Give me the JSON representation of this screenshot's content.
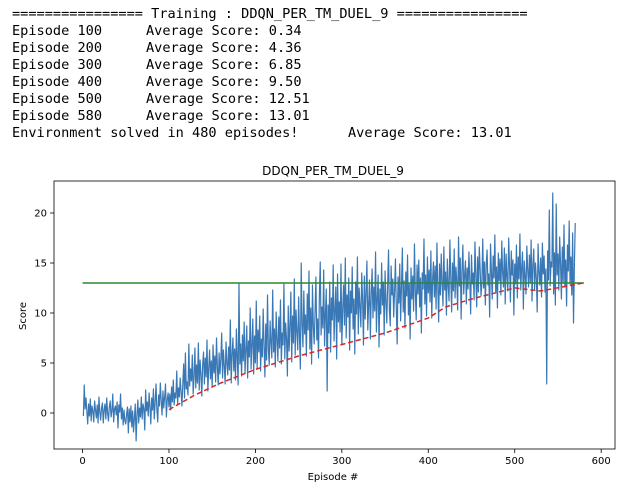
{
  "console": {
    "header": "================ Training : DDQN_PER_TM_DUEL_9 ================",
    "episodes": [
      {
        "episode": "Episode 100",
        "score": "Average Score: 0.34"
      },
      {
        "episode": "Episode 200",
        "score": "Average Score: 4.36"
      },
      {
        "episode": "Episode 300",
        "score": "Average Score: 6.85"
      },
      {
        "episode": "Episode 400",
        "score": "Average Score: 9.50"
      },
      {
        "episode": "Episode 500",
        "score": "Average Score: 12.51"
      },
      {
        "episode": "Episode 580",
        "score": "Average Score: 13.01"
      }
    ],
    "solved": "Environment solved in 480 episodes!",
    "solved_score": "Average Score: 13.01"
  },
  "chart_data": {
    "type": "line",
    "title": "DDQN_PER_TM_DUEL_9",
    "xlabel": "Episode #",
    "ylabel": "Score",
    "xlim": [
      -33,
      616
    ],
    "ylim": [
      -3.6,
      23.2
    ],
    "xticks": [
      0,
      100,
      200,
      300,
      400,
      500,
      600
    ],
    "yticks": [
      0,
      5,
      10,
      15,
      20
    ],
    "grid": false,
    "colors": {
      "score": "#3a78b5",
      "average": "#d62728",
      "target": "#2a8a2a"
    },
    "target": {
      "value": 13,
      "x": [
        0,
        580
      ]
    },
    "series": [
      {
        "name": "",
        "style": "solid",
        "x_start": 1,
        "values": [
          -0.3,
          2.8,
          0.4,
          1.5,
          0.2,
          -1.1,
          0.9,
          -0.3,
          1.4,
          -0.8,
          0.7,
          0.2,
          -0.9,
          1.2,
          0.3,
          -0.5,
          0.8,
          -1.0,
          1.6,
          0.1,
          -0.7,
          0.5,
          1.0,
          -1.0,
          0.3,
          0.9,
          -0.6,
          1.5,
          0.0,
          -0.8,
          0.6,
          1.2,
          -0.4,
          0.2,
          1.9,
          -0.9,
          0.4,
          0.7,
          -0.2,
          1.1,
          -1.5,
          0.8,
          0.1,
          1.9,
          -0.6,
          0.5,
          -1.2,
          0.3,
          -0.8,
          -1.1,
          -0.1,
          0.6,
          -2.0,
          0.4,
          -0.9,
          0.7,
          -1.4,
          0.2,
          -1.9,
          -0.5,
          0.9,
          -2.8,
          -0.2,
          1.3,
          -1.0,
          0.5,
          -0.4,
          1.6,
          -0.6,
          0.9,
          0.4,
          -1.7,
          2.3,
          0.2,
          1.1,
          -0.3,
          2.0,
          0.6,
          -1.1,
          1.5,
          0.3,
          2.4,
          -0.6,
          1.0,
          2.9,
          0.4,
          -0.9,
          1.8,
          0.7,
          3.0,
          1.2,
          -0.2,
          2.2,
          0.5,
          1.6,
          2.9,
          -0.4,
          1.3,
          2.0,
          0.6,
          1.9,
          0.3,
          2.6,
          1.1,
          3.3,
          0.8,
          2.0,
          1.5,
          4.2,
          0.9,
          2.5,
          1.6,
          3.5,
          2.1,
          0.7,
          2.9,
          4.9,
          1.5,
          6.0,
          2.4,
          3.1,
          1.8,
          6.9,
          2.7,
          4.4,
          3.2,
          5.8,
          1.9,
          3.6,
          6.5,
          2.5,
          4.8,
          3.0,
          7.0,
          2.3,
          5.3,
          3.8,
          1.7,
          4.9,
          6.1,
          2.9,
          5.5,
          3.6,
          7.3,
          2.2,
          4.5,
          6.3,
          3.4,
          5.2,
          2.6,
          6.8,
          4.0,
          5.7,
          3.1,
          7.5,
          4.6,
          2.8,
          6.0,
          3.9,
          5.4,
          8.0,
          3.5,
          6.3,
          4.7,
          2.9,
          7.1,
          5.0,
          3.8,
          6.6,
          4.3,
          9.3,
          3.0,
          5.8,
          7.5,
          4.2,
          6.4,
          3.3,
          8.4,
          5.5,
          2.8,
          13.0,
          4.9,
          6.9,
          3.7,
          7.8,
          5.2,
          9.1,
          4.0,
          6.3,
          8.7,
          3.5,
          7.2,
          5.6,
          10.5,
          4.4,
          6.8,
          9.4,
          3.9,
          7.7,
          5.0,
          11.2,
          4.5,
          8.3,
          6.1,
          9.7,
          4.2,
          7.4,
          5.6,
          10.4,
          6.7,
          3.6,
          8.9,
          5.3,
          11.8,
          6.4,
          4.8,
          9.2,
          7.0,
          5.5,
          12.3,
          6.1,
          8.4,
          4.6,
          10.1,
          7.3,
          5.2,
          9.6,
          6.5,
          11.3,
          4.9,
          8.0,
          6.8,
          12.9,
          5.4,
          9.0,
          7.4,
          3.7,
          10.7,
          6.2,
          8.6,
          12.1,
          5.1,
          9.7,
          7.0,
          13.4,
          5.8,
          10.3,
          8.1,
          6.3,
          11.6,
          7.7,
          4.4,
          15.0,
          8.9,
          6.6,
          12.2,
          7.9,
          9.8,
          5.7,
          11.9,
          8.3,
          14.2,
          6.4,
          10.5,
          4.9,
          12.8,
          8.7,
          6.9,
          10.1,
          13.6,
          7.3,
          9.4,
          5.5,
          11.7,
          15.1,
          7.8,
          10.6,
          8.5,
          14.3,
          6.7,
          9.9,
          12.4,
          2.2,
          10.8,
          8.0,
          13.1,
          6.1,
          11.5,
          9.3,
          14.8,
          7.2,
          10.3,
          12.6,
          5.4,
          13.9,
          9.1,
          11.1,
          8.1,
          14.9,
          6.8,
          10.4,
          12.8,
          8.8,
          15.5,
          7.5,
          11.8,
          9.6,
          13.5,
          6.3,
          12.2,
          10.0,
          14.6,
          8.4,
          11.4,
          5.9,
          13.1,
          9.9,
          15.6,
          7.9,
          12.5,
          10.7,
          8.6,
          14.0,
          11.3,
          6.8,
          13.7,
          9.4,
          12.0,
          15.2,
          8.3,
          10.9,
          13.3,
          7.4,
          11.9,
          14.4,
          9.5,
          12.6,
          10.2,
          16.1,
          8.1,
          11.5,
          13.8,
          6.6,
          12.4,
          9.9,
          15.0,
          10.8,
          13.1,
          7.8,
          14.2,
          11.2,
          9.0,
          12.9,
          16.3,
          10.3,
          8.7,
          14.7,
          11.8,
          13.4,
          9.6,
          12.2,
          15.4,
          10.5,
          6.9,
          13.6,
          11.0,
          14.9,
          9.2,
          12.7,
          16.5,
          10.1,
          13.2,
          8.5,
          14.1,
          11.7,
          15.8,
          9.8,
          12.9,
          7.4,
          14.5,
          11.4,
          13.7,
          10.2,
          16.9,
          12.1,
          9.3,
          14.8,
          11.9,
          15.3,
          10.6,
          13.5,
          8.0,
          14.0,
          12.4,
          17.4,
          10.9,
          13.8,
          9.7,
          15.6,
          12.0,
          14.3,
          11.1,
          16.2,
          9.5,
          13.4,
          15.1,
          11.6,
          14.7,
          10.4,
          17.0,
          12.6,
          9.1,
          14.9,
          11.8,
          15.9,
          13.0,
          10.7,
          16.6,
          12.3,
          14.1,
          9.8,
          15.4,
          12.8,
          11.2,
          17.3,
          13.6,
          10.1,
          15.0,
          12.2,
          16.4,
          11.5,
          14.6,
          13.1,
          10.3,
          17.6,
          12.7,
          15.5,
          9.4,
          14.2,
          16.8,
          11.9,
          13.8,
          15.2,
          10.9,
          14.5,
          12.4,
          16.1,
          13.3,
          9.9,
          15.8,
          12.9,
          14.0,
          11.3,
          17.1,
          13.7,
          10.6,
          15.6,
          12.1,
          16.6,
          14.4,
          11.7,
          13.0,
          17.4,
          12.5,
          15.1,
          10.8,
          14.8,
          16.3,
          12.8,
          13.9,
          9.6,
          16.9,
          14.2,
          11.4,
          15.7,
          13.5,
          17.8,
          12.0,
          14.6,
          10.5,
          16.0,
          13.2,
          15.4,
          11.8,
          17.2,
          14.0,
          12.6,
          16.5,
          10.9,
          15.9,
          13.6,
          12.2,
          17.5,
          14.7,
          11.1,
          16.2,
          13.8,
          15.3,
          9.8,
          14.9,
          12.9,
          16.8,
          11.5,
          15.6,
          13.4,
          17.9,
          12.3,
          14.5,
          16.1,
          10.4,
          15.2,
          13.7,
          11.9,
          16.7,
          14.3,
          12.6,
          15.8,
          13.0,
          17.3,
          11.2,
          14.8,
          16.4,
          12.4,
          15.0,
          13.5,
          10.1,
          16.9,
          14.1,
          12.8,
          15.5,
          11.6,
          17.0,
          13.9,
          15.7,
          12.1,
          14.4,
          2.9,
          16.2,
          13.3,
          20.3,
          12.7,
          15.1,
          14.6,
          22.0,
          11.9,
          16.0,
          10.8,
          20.9,
          13.8,
          15.9,
          12.3,
          17.6,
          14.9,
          11.4,
          16.6,
          13.0,
          18.8,
          12.6,
          15.3,
          10.7,
          16.8,
          14.2,
          19.2,
          12.9,
          15.6,
          11.8,
          18.0,
          9.0,
          14.7,
          19.0
        ]
      },
      {
        "name": "",
        "style": "dashed",
        "x": [
          100,
          130,
          160,
          200,
          250,
          300,
          350,
          400,
          420,
          450,
          500,
          530,
          580
        ],
        "values": [
          0.34,
          1.8,
          3.0,
          4.36,
          5.7,
          6.85,
          8.0,
          9.5,
          10.6,
          11.4,
          12.51,
          12.2,
          13.01
        ]
      }
    ]
  }
}
